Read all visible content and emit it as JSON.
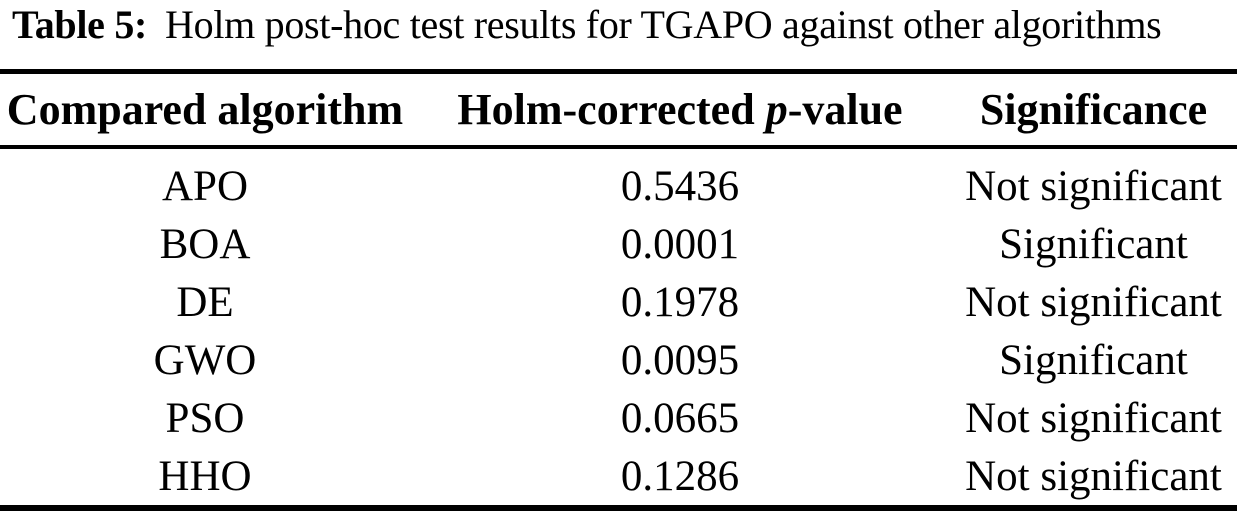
{
  "colors": {
    "text": "#000000",
    "background": "#ffffff",
    "rule": "#000000"
  },
  "caption": {
    "label": "Table 5:",
    "text": "Holm post-hoc test results for TGAPO against other algorithms"
  },
  "table": {
    "headers": {
      "compared_algorithm": "Compared algorithm",
      "p_value": {
        "pre": "Holm-corrected ",
        "italic": "p",
        "post": "-value"
      },
      "significance": "Significance"
    },
    "rows": [
      {
        "algorithm": "APO",
        "p_value": "0.5436",
        "significance": "Not significant"
      },
      {
        "algorithm": "BOA",
        "p_value": "0.0001",
        "significance": "Significant"
      },
      {
        "algorithm": "DE",
        "p_value": "0.1978",
        "significance": "Not significant"
      },
      {
        "algorithm": "GWO",
        "p_value": "0.0095",
        "significance": "Significant"
      },
      {
        "algorithm": "PSO",
        "p_value": "0.0665",
        "significance": "Not significant"
      },
      {
        "algorithm": "HHO",
        "p_value": "0.1286",
        "significance": "Not significant"
      }
    ]
  },
  "chart_data": {
    "type": "table",
    "title": "Table 5: Holm post-hoc test results for TGAPO against other algorithms",
    "columns": [
      "Compared algorithm",
      "Holm-corrected p-value",
      "Significance"
    ],
    "rows": [
      [
        "APO",
        0.5436,
        "Not significant"
      ],
      [
        "BOA",
        0.0001,
        "Significant"
      ],
      [
        "DE",
        0.1978,
        "Not significant"
      ],
      [
        "GWO",
        0.0095,
        "Significant"
      ],
      [
        "PSO",
        0.0665,
        "Not significant"
      ],
      [
        "HHO",
        0.1286,
        "Not significant"
      ]
    ]
  }
}
